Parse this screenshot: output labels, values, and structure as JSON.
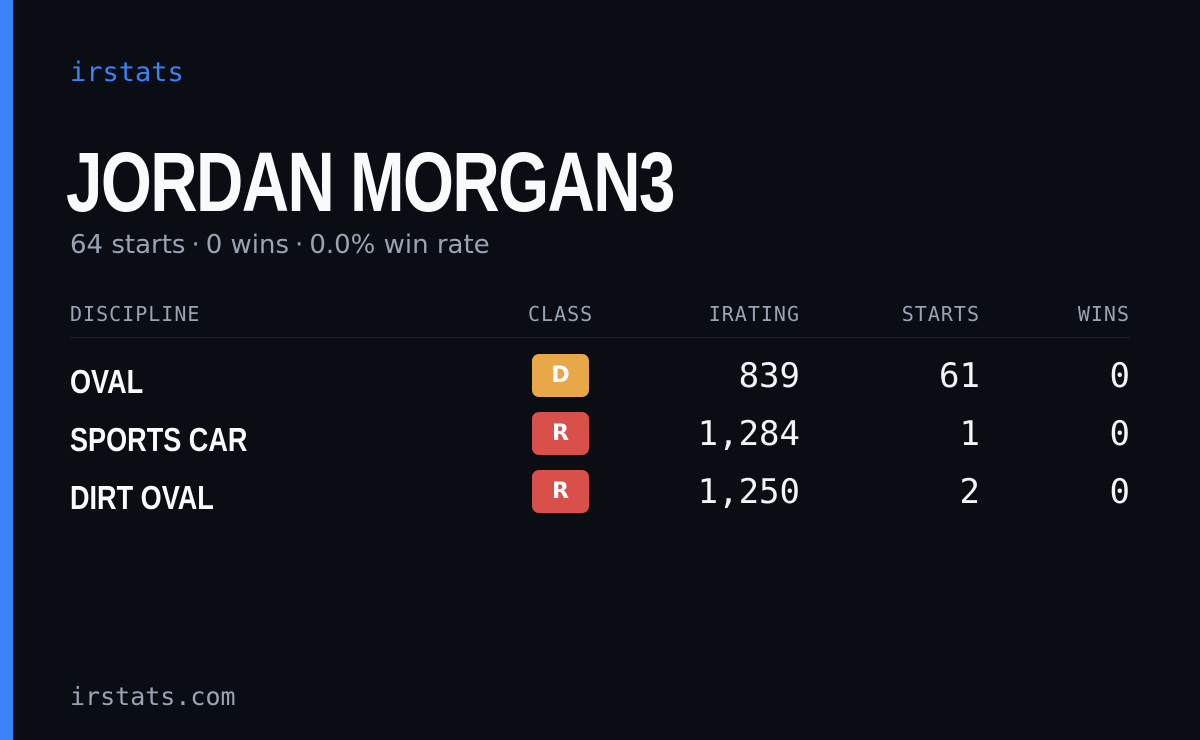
{
  "brand": "irstats",
  "player": {
    "name": "JORDAN MORGAN3"
  },
  "summary": {
    "starts": "64 starts",
    "wins": "0 wins",
    "win_rate": "0.0% win rate",
    "separator": "·"
  },
  "table": {
    "headers": {
      "discipline": "DISCIPLINE",
      "class": "CLASS",
      "irating": "IRATING",
      "starts": "STARTS",
      "wins": "WINS"
    },
    "rows": [
      {
        "discipline": "OVAL",
        "class": "D",
        "irating": "839",
        "starts": "61",
        "wins": "0"
      },
      {
        "discipline": "SPORTS CAR",
        "class": "R",
        "irating": "1,284",
        "starts": "1",
        "wins": "0"
      },
      {
        "discipline": "DIRT OVAL",
        "class": "R",
        "irating": "1,250",
        "starts": "2",
        "wins": "0"
      }
    ]
  },
  "footer": {
    "site": "irstats.com"
  },
  "colors": {
    "accent": "#3b82f6",
    "class_d": "#e8a84a",
    "class_r": "#d94f4a",
    "background": "#0a0d14"
  }
}
